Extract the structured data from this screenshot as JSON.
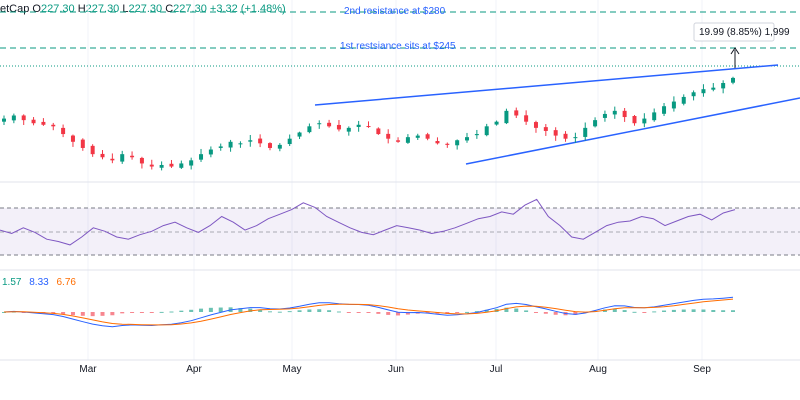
{
  "header": {
    "title_fragment": "etCap",
    "open_label": "O",
    "open": "227.30",
    "high_label": "H",
    "high": "227.30",
    "low_label": "L",
    "low": "227.30",
    "close_label": "C",
    "close": "227.30",
    "change": "+3.32 (+1.48%)"
  },
  "colors": {
    "up": "#089981",
    "down": "#f23645",
    "trendline": "#2962ff",
    "rsi": "#7e57c2",
    "macd": "#2962ff",
    "signal": "#ff6d00"
  },
  "annotations": {
    "resistance_2": "2nd resistance at $280",
    "resistance_1": "1st restsiance sits at $245",
    "measure": "19.99 (8.85%) 1,999"
  },
  "macd_values": {
    "hist": "1.57",
    "macd": "8.33",
    "signal": "6.76"
  },
  "chart_data": {
    "type": "candlestick",
    "x_labels": [
      "Mar",
      "Apr",
      "May",
      "Jun",
      "Jul",
      "Aug",
      "Sep"
    ],
    "price_series": {
      "last_close": 227.3,
      "approx_closes": [
        201,
        203,
        200,
        198,
        197,
        196,
        191,
        186,
        182,
        178,
        176,
        174,
        178,
        176,
        172,
        170,
        171,
        170,
        172,
        174,
        178,
        181,
        183,
        186,
        185,
        187,
        185,
        182,
        184,
        188,
        192,
        196,
        198,
        196,
        194,
        195,
        197,
        196,
        191,
        188,
        186,
        189,
        190,
        188,
        185,
        184,
        187,
        189,
        191,
        196,
        199,
        206,
        203,
        199,
        195,
        193,
        190,
        188,
        189,
        195,
        200,
        204,
        206,
        202,
        198,
        201,
        205,
        209,
        212,
        215,
        218,
        220,
        221,
        224,
        227.3
      ]
    },
    "resistance_levels": [
      {
        "label": "2nd resistance at $280",
        "value": 280
      },
      {
        "label": "1st restsiance sits at $245",
        "value": 245
      }
    ],
    "measurement": {
      "change": 19.99,
      "change_pct": 8.85,
      "bars": 1999
    },
    "rsi": {
      "bands": [
        70,
        50,
        30
      ],
      "approx_values": [
        48,
        45,
        50,
        46,
        40,
        38,
        35,
        42,
        50,
        47,
        42,
        40,
        44,
        47,
        52,
        55,
        50,
        46,
        52,
        60,
        55,
        48,
        52,
        58,
        62,
        66,
        72,
        68,
        60,
        55,
        50,
        46,
        44,
        48,
        52,
        50,
        48,
        45,
        47,
        50,
        54,
        58,
        60,
        64,
        62,
        70,
        75,
        60,
        52,
        42,
        40,
        46,
        52,
        55,
        56,
        60,
        58,
        52,
        56,
        60,
        62,
        57,
        63,
        66
      ]
    },
    "macd": {
      "hist": 1.57,
      "macd": 8.33,
      "signal": 6.76
    }
  }
}
